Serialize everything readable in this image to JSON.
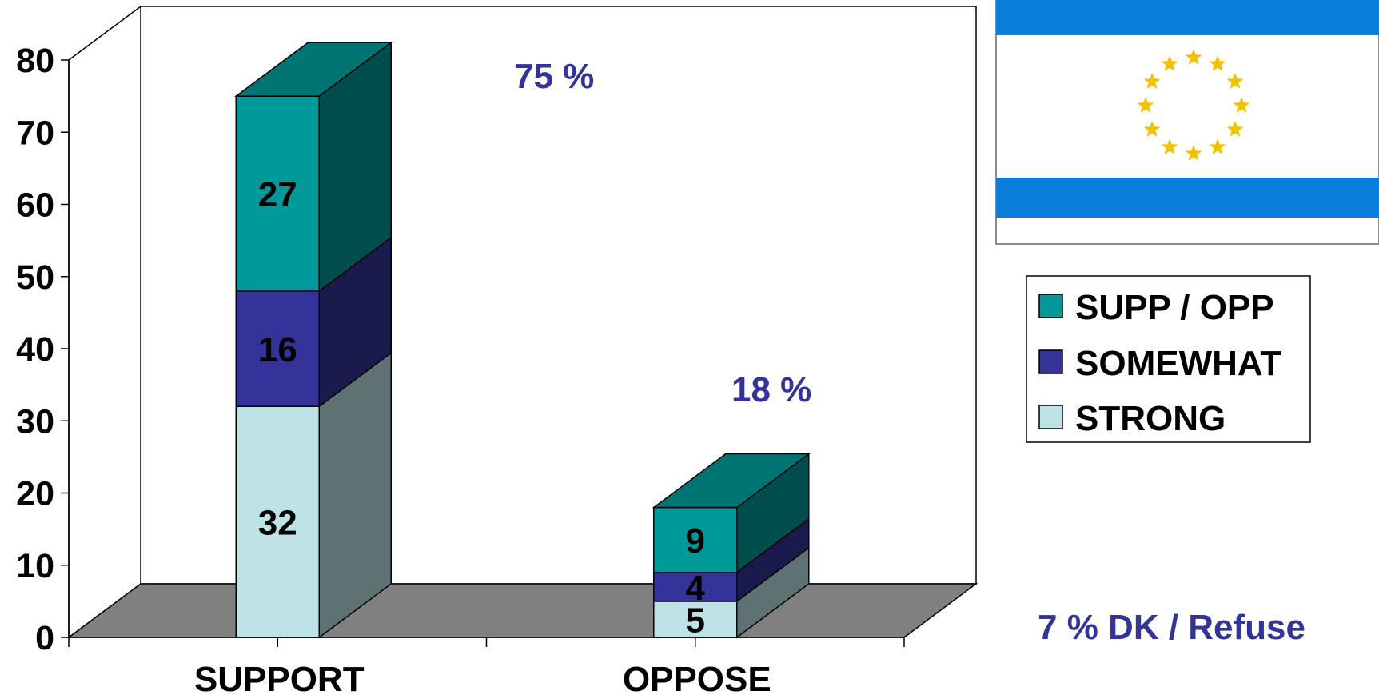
{
  "chart_data": {
    "type": "bar",
    "stacked": true,
    "three_d": true,
    "categories": [
      "SUPPORT",
      "OPPOSE"
    ],
    "series": [
      {
        "name": "STRONG",
        "values": [
          32,
          5
        ],
        "color": "#BDE3E6"
      },
      {
        "name": "SOMEWHAT",
        "values": [
          16,
          4
        ],
        "color": "#333399"
      },
      {
        "name": "SUPP / OPP",
        "values": [
          27,
          9
        ],
        "color": "#009999"
      }
    ],
    "totals_labels": [
      "75 %",
      "18 %"
    ],
    "note": "7 % DK / Refuse",
    "yticks": [
      0,
      10,
      20,
      30,
      40,
      50,
      60,
      70,
      80
    ],
    "ylim": [
      0,
      80
    ],
    "legend_position": "right",
    "colors": {
      "floor": "#808080",
      "annotation": "#333399",
      "flag_blue": "#0B7DDA",
      "flag_stars": "#F2C200"
    }
  }
}
